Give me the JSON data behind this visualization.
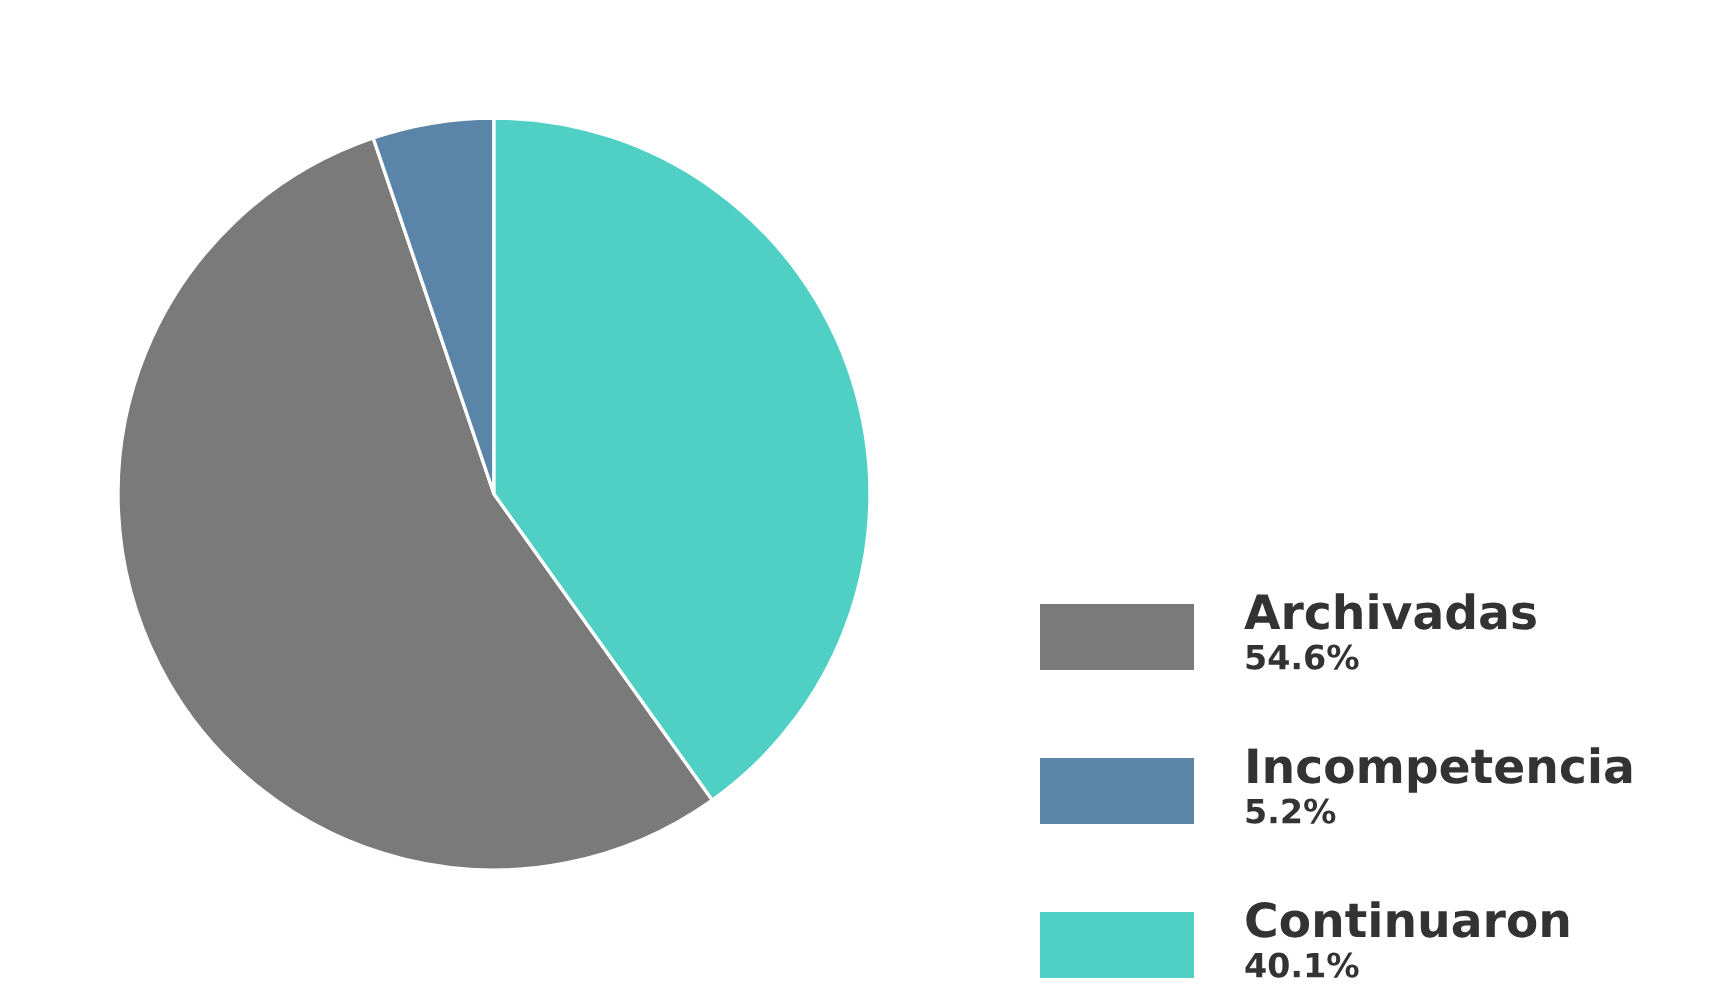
{
  "chart_data": {
    "type": "pie",
    "categories": [
      "Archivadas",
      "Incompetencia",
      "Continuaron"
    ],
    "values": [
      54.6,
      5.2,
      40.1
    ],
    "value_labels": [
      "54.6%",
      "5.2%",
      "40.1%"
    ],
    "colors": [
      "#7a7a7a",
      "#5a84a8",
      "#50d0c5"
    ],
    "legend": "right"
  }
}
